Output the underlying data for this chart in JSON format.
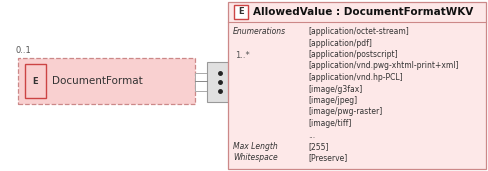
{
  "bg_color": "#ffffff",
  "left_box": {
    "label": "DocumentFormat",
    "fill": "#f9d0d0",
    "edge_color": "#cc8888",
    "e_box_fill": "#f9d0d0",
    "e_box_edge": "#cc4444",
    "e_label": "E",
    "cardinality_left": "0..1",
    "cardinality_right": "1..*"
  },
  "connector_box": {
    "fill": "#e0e0e0",
    "edge_color": "#999999"
  },
  "right_panel": {
    "fill": "#fde8e8",
    "edge_color": "#cc8888",
    "title": "AllowedValue : DocumentFormatWKV",
    "title_e_label": "E",
    "title_e_box_fill": "#ffffff",
    "title_e_box_edge": "#cc4444",
    "label_color": "#333333",
    "value_color": "#333333",
    "rows": [
      {
        "label": "Enumerations",
        "value": "[application/octet-stream]"
      },
      {
        "label": "",
        "value": "[application/pdf]"
      },
      {
        "label": "",
        "value": "[application/postscript]"
      },
      {
        "label": "",
        "value": "[application/vnd.pwg-xhtml-print+xml]"
      },
      {
        "label": "",
        "value": "[application/vnd.hp-PCL]"
      },
      {
        "label": "",
        "value": "[image/g3fax]"
      },
      {
        "label": "",
        "value": "[image/jpeg]"
      },
      {
        "label": "",
        "value": "[image/pwg-raster]"
      },
      {
        "label": "",
        "value": "[image/tiff]"
      },
      {
        "label": "",
        "value": "..."
      },
      {
        "label": "Max Length",
        "value": "[255]"
      },
      {
        "label": "Whitespace",
        "value": "[Preserve]"
      }
    ]
  }
}
